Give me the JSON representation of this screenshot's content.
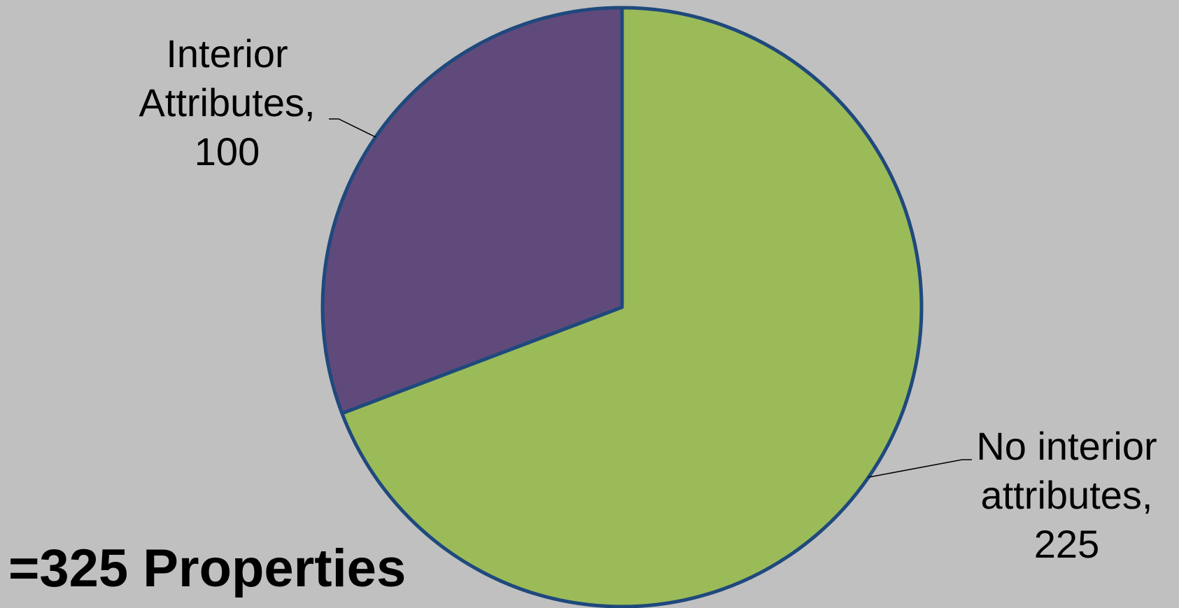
{
  "chart_data": {
    "type": "pie",
    "slices": [
      {
        "label_lines": [
          "No interior",
          "attributes,",
          "225"
        ],
        "value": 225,
        "color": "#9bbb59"
      },
      {
        "label_lines": [
          "Interior",
          "Attributes,",
          "100"
        ],
        "value": 100,
        "color": "#604a7b"
      }
    ],
    "start_angle_deg": 0,
    "direction": "clockwise",
    "slice_border_color": "#1f497d",
    "leader_line_color": "#000000",
    "background_color": "#c0c0c0",
    "legend": "none",
    "annotation": "=325 Properties"
  }
}
